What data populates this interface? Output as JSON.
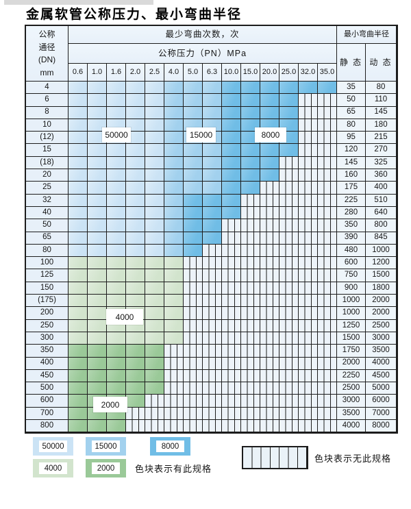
{
  "page": {
    "title": "金属软管公称压力、最小弯曲半径"
  },
  "table": {
    "dn_header_lines": [
      "公称",
      "通径",
      "(DN)",
      "mm"
    ],
    "cycles_title": "最少弯曲次数，次",
    "pressure_title": "公称压力（PN）MPa",
    "pressure_columns": [
      "0.6",
      "1.0",
      "1.6",
      "2.0",
      "2.5",
      "4.0",
      "5.0",
      "6.3",
      "10.0",
      "15.0",
      "20.0",
      "25.0",
      "32.0",
      "35.0"
    ],
    "radius_title": "最小弯曲半径",
    "static_label": "静 态",
    "dynamic_label": "动 态",
    "band_colors": {
      "b1": "#cbe3f5",
      "b2": "#a2d1ee",
      "b3": "#70bde6",
      "g1": "#d2e4cd",
      "g2": "#9ac998",
      "none": "#edf3f9",
      "hdr": "#e7f0f9",
      "cellbg": "#eef5fa"
    },
    "rows": [
      {
        "dn": "4",
        "bands": {
          "b1": 5,
          "b2": 3,
          "b3": 6
        },
        "static": "35",
        "dynamic": "80"
      },
      {
        "dn": "6",
        "bands": {
          "b1": 5,
          "b2": 3,
          "b3": 4
        },
        "static": "50",
        "dynamic": "110"
      },
      {
        "dn": "8",
        "bands": {
          "b1": 5,
          "b2": 3,
          "b3": 4
        },
        "static": "65",
        "dynamic": "145"
      },
      {
        "dn": "10",
        "bands": {
          "b1": 5,
          "b2": 3,
          "b3": 4
        },
        "static": "80",
        "dynamic": "180"
      },
      {
        "dn": "(12)",
        "bands": {
          "b1": 5,
          "b2": 3,
          "b3": 4
        },
        "static": "95",
        "dynamic": "215"
      },
      {
        "dn": "15",
        "bands": {
          "b1": 5,
          "b2": 3,
          "b3": 4
        },
        "static": "120",
        "dynamic": "270"
      },
      {
        "dn": "(18)",
        "bands": {
          "b1": 5,
          "b2": 3,
          "b3": 3
        },
        "static": "145",
        "dynamic": "325"
      },
      {
        "dn": "20",
        "bands": {
          "b1": 5,
          "b2": 3,
          "b3": 3
        },
        "static": "160",
        "dynamic": "360"
      },
      {
        "dn": "25",
        "bands": {
          "b1": 5,
          "b2": 3,
          "b3": 2
        },
        "static": "175",
        "dynamic": "400"
      },
      {
        "dn": "32",
        "bands": {
          "b1": 5,
          "b2": 1,
          "b3": 3
        },
        "static": "225",
        "dynamic": "510"
      },
      {
        "dn": "40",
        "bands": {
          "b1": 5,
          "b2": 1,
          "b3": 3
        },
        "static": "280",
        "dynamic": "640"
      },
      {
        "dn": "50",
        "bands": {
          "b1": 5,
          "b2": 1,
          "b3": 2
        },
        "static": "350",
        "dynamic": "800"
      },
      {
        "dn": "65",
        "bands": {
          "b1": 5,
          "b2": 1,
          "b3": 2
        },
        "static": "390",
        "dynamic": "845"
      },
      {
        "dn": "80",
        "bands": {
          "b1": 5,
          "b2": 1,
          "b3": 1
        },
        "static": "480",
        "dynamic": "1000"
      },
      {
        "dn": "100",
        "bands": {
          "g1": 6
        },
        "static": "600",
        "dynamic": "1200"
      },
      {
        "dn": "125",
        "bands": {
          "g1": 6
        },
        "static": "750",
        "dynamic": "1500"
      },
      {
        "dn": "150",
        "bands": {
          "g1": 6
        },
        "static": "900",
        "dynamic": "1800"
      },
      {
        "dn": "(175)",
        "bands": {
          "g1": 6
        },
        "static": "1000",
        "dynamic": "2000"
      },
      {
        "dn": "200",
        "bands": {
          "g1": 6
        },
        "static": "1000",
        "dynamic": "2000"
      },
      {
        "dn": "250",
        "bands": {
          "g1": 6
        },
        "static": "1250",
        "dynamic": "2500"
      },
      {
        "dn": "300",
        "bands": {
          "g1": 6
        },
        "static": "1500",
        "dynamic": "3000"
      },
      {
        "dn": "350",
        "bands": {
          "g2": 5
        },
        "static": "1750",
        "dynamic": "3500"
      },
      {
        "dn": "400",
        "bands": {
          "g2": 5
        },
        "static": "2000",
        "dynamic": "4000"
      },
      {
        "dn": "450",
        "bands": {
          "g2": 5
        },
        "static": "2250",
        "dynamic": "4500"
      },
      {
        "dn": "500",
        "bands": {
          "g2": 5
        },
        "static": "2500",
        "dynamic": "5000"
      },
      {
        "dn": "600",
        "bands": {
          "g2": 4
        },
        "static": "3000",
        "dynamic": "6000"
      },
      {
        "dn": "700",
        "bands": {
          "g2": 3
        },
        "static": "3500",
        "dynamic": "7000"
      },
      {
        "dn": "800",
        "bands": {
          "g2": 3
        },
        "static": "4000",
        "dynamic": "8000"
      }
    ],
    "overlay_labels": [
      {
        "text": "50000"
      },
      {
        "text": "15000"
      },
      {
        "text": "8000"
      },
      {
        "text": "4000"
      },
      {
        "text": "2000"
      }
    ]
  },
  "legend": {
    "items": [
      {
        "label": "50000",
        "color": "#cbe3f5"
      },
      {
        "label": "15000",
        "color": "#a2d1ee"
      },
      {
        "label": "8000",
        "color": "#70bde6"
      },
      {
        "label": "4000",
        "color": "#d2e4cd"
      },
      {
        "label": "2000",
        "color": "#9ac998"
      }
    ],
    "has_spec_text": "色块表示有此规格",
    "no_spec_text": "色块表示无此规格"
  }
}
